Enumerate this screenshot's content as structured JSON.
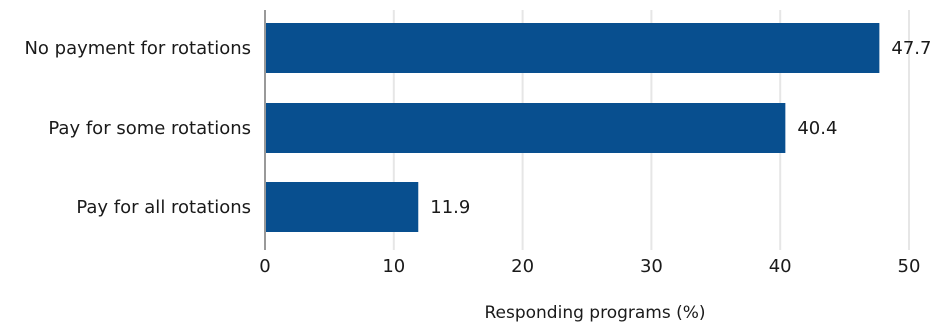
{
  "chart_data": {
    "type": "bar",
    "orientation": "horizontal",
    "categories": [
      "No payment for rotations",
      "Pay for some rotations",
      "Pay for all rotations"
    ],
    "values": [
      47.7,
      40.4,
      11.9
    ],
    "data_labels": [
      "47.7",
      "40.4",
      "11.9"
    ],
    "xlabel": "Responding programs (%)",
    "ylabel": "",
    "xlim": [
      0,
      50
    ],
    "xticks": [
      0,
      10,
      20,
      30,
      40,
      50
    ],
    "xtick_labels": [
      "0",
      "10",
      "20",
      "30",
      "40",
      "50"
    ],
    "grid": true,
    "bar_color": "#084f8f",
    "grid_color": "#e6e6e6",
    "axis_color": "#999999"
  }
}
